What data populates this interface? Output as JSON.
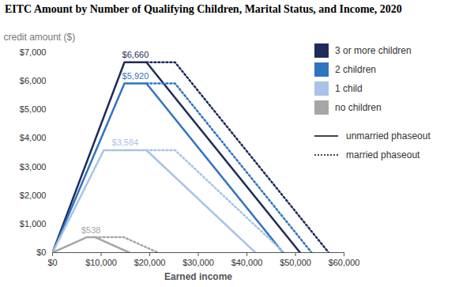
{
  "chart_data": {
    "type": "line",
    "title": "EITC Amount by Number of Qualifying Children, Marital Status, and Income, 2020",
    "xlabel": "Earned income",
    "ylabel": "credit amount ($)",
    "xlim": [
      0,
      60000
    ],
    "xticks": [
      {
        "value": 0,
        "label": "$0"
      },
      {
        "value": 10000,
        "label": "$10,000"
      },
      {
        "value": 20000,
        "label": "$20,000"
      },
      {
        "value": 30000,
        "label": "$30,000"
      },
      {
        "value": 40000,
        "label": "$40,000"
      },
      {
        "value": 50000,
        "label": "$50,000"
      },
      {
        "value": 60000,
        "label": "$60,000"
      }
    ],
    "ylim": [
      0,
      7000
    ],
    "yticks": [
      {
        "value": 0,
        "label": "$0"
      },
      {
        "value": 1000,
        "label": "$1,000"
      },
      {
        "value": 2000,
        "label": "$2,000"
      },
      {
        "value": 3000,
        "label": "$3,000"
      },
      {
        "value": 4000,
        "label": "$4,000"
      },
      {
        "value": 5000,
        "label": "$5,000"
      },
      {
        "value": 6000,
        "label": "$6,000"
      },
      {
        "value": 7000,
        "label": "$7,000"
      }
    ],
    "grid": false,
    "legend": "top-right",
    "series": [
      {
        "name": "3 or more children",
        "color": "#1f2b5b",
        "line_style": "solid",
        "x": [
          0,
          14800,
          19330,
          50954
        ],
        "values": [
          0,
          6660,
          6660,
          0
        ]
      },
      {
        "name": "3 or more children",
        "color": "#1f2b5b",
        "line_style": "dotted",
        "x": [
          19330,
          25220,
          56844
        ],
        "values": [
          6660,
          6660,
          0
        ]
      },
      {
        "name": "2 children",
        "color": "#2f74c0",
        "line_style": "solid",
        "x": [
          0,
          14800,
          19330,
          47440
        ],
        "values": [
          0,
          5920,
          5920,
          0
        ]
      },
      {
        "name": "2 children",
        "color": "#2f74c0",
        "line_style": "dotted",
        "x": [
          19330,
          25220,
          53330
        ],
        "values": [
          5920,
          5920,
          0
        ]
      },
      {
        "name": "1 child",
        "color": "#a8c3e6",
        "line_style": "solid",
        "x": [
          0,
          10540,
          19330,
          41756
        ],
        "values": [
          0,
          3584,
          3584,
          0
        ]
      },
      {
        "name": "1 child",
        "color": "#a8c3e6",
        "line_style": "dotted",
        "x": [
          19330,
          25220,
          47646
        ],
        "values": [
          3584,
          3584,
          0
        ]
      },
      {
        "name": "no children",
        "color": "#a6a6a6",
        "line_style": "solid",
        "x": [
          0,
          7030,
          8790,
          15820
        ],
        "values": [
          0,
          538,
          538,
          0
        ]
      },
      {
        "name": "no children",
        "color": "#a6a6a6",
        "line_style": "dotted",
        "x": [
          8790,
          14680,
          21710
        ],
        "values": [
          538,
          538,
          0
        ]
      }
    ],
    "line_styles": [
      {
        "line_style": "solid",
        "label": "unmarried phaseout"
      },
      {
        "line_style": "dotted",
        "label": "married phaseout"
      }
    ],
    "annotations": [
      {
        "text": "$6,660",
        "x": 17065,
        "y": 6660,
        "series": "3 or more children"
      },
      {
        "text": "$5,920",
        "x": 17065,
        "y": 5920,
        "series": "2 children"
      },
      {
        "text": "$3,584",
        "x": 14935,
        "y": 3584,
        "series": "1 child"
      },
      {
        "text": "$538",
        "x": 7910,
        "y": 538,
        "series": "no children"
      }
    ]
  }
}
